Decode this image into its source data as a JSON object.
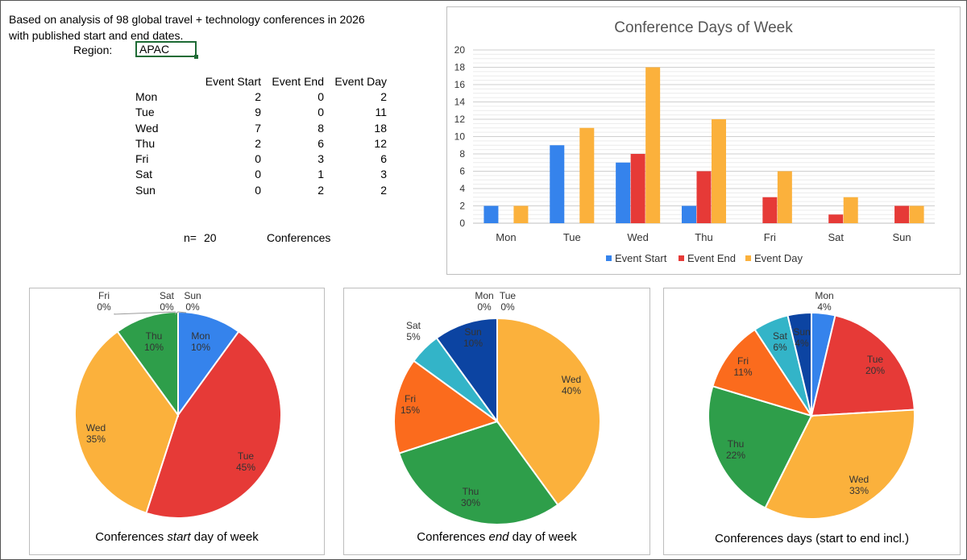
{
  "intro_line1": "Based on analysis of 98 global travel + technology conferences in 2026",
  "intro_line2": "with published start and end dates.",
  "region_label": "Region:",
  "region_value": "APAC",
  "table": {
    "headers": [
      "",
      "Event Start",
      "Event End",
      "Event Day"
    ],
    "rows": [
      [
        "Mon",
        "2",
        "0",
        "2"
      ],
      [
        "Tue",
        "9",
        "0",
        "11"
      ],
      [
        "Wed",
        "7",
        "8",
        "18"
      ],
      [
        "Thu",
        "2",
        "6",
        "12"
      ],
      [
        "Fri",
        "0",
        "3",
        "6"
      ],
      [
        "Sat",
        "0",
        "1",
        "3"
      ],
      [
        "Sun",
        "0",
        "2",
        "2"
      ]
    ]
  },
  "n_label": "n=",
  "n_value": "20",
  "n_unit": "Conferences",
  "colors": {
    "start": "#3583ec",
    "end": "#e63a37",
    "day": "#fbb13c",
    "pie_mon": "#3583ec",
    "pie_tue": "#e63a37",
    "pie_wed": "#fbb13c",
    "pie_thu": "#2e9e4a",
    "pie_fri": "#fb6b1d",
    "pie_sat": "#33b4c8",
    "pie_sun": "#0c44a2"
  },
  "chart_data": [
    {
      "type": "bar",
      "title": "Conference Days of Week",
      "categories": [
        "Mon",
        "Tue",
        "Wed",
        "Thu",
        "Fri",
        "Sat",
        "Sun"
      ],
      "series": [
        {
          "name": "Event Start",
          "values": [
            2,
            9,
            7,
            2,
            0,
            0,
            0
          ]
        },
        {
          "name": "Event End",
          "values": [
            0,
            0,
            8,
            6,
            3,
            1,
            2
          ]
        },
        {
          "name": "Event Day",
          "values": [
            2,
            11,
            18,
            12,
            6,
            3,
            2
          ]
        }
      ],
      "ylim": [
        0,
        20
      ],
      "yticks": [
        "0",
        "2",
        "4",
        "6",
        "8",
        "10",
        "12",
        "14",
        "16",
        "18",
        "20"
      ],
      "legend": "bottom",
      "grid": true
    },
    {
      "type": "pie",
      "title_parts": [
        "Conferences ",
        "start",
        " day of week"
      ],
      "labels": [
        "Mon",
        "Tue",
        "Wed",
        "Thu",
        "Fri",
        "Sat",
        "Sun"
      ],
      "values": [
        2,
        9,
        7,
        2,
        0,
        0,
        0
      ],
      "percents": [
        "10%",
        "45%",
        "35%",
        "10%",
        "0%",
        "0%",
        "0%"
      ]
    },
    {
      "type": "pie",
      "title_parts": [
        "Conferences ",
        "end",
        " day of week"
      ],
      "labels": [
        "Mon",
        "Tue",
        "Wed",
        "Thu",
        "Fri",
        "Sat",
        "Sun"
      ],
      "values": [
        0,
        0,
        8,
        6,
        3,
        1,
        2
      ],
      "percents": [
        "0%",
        "0%",
        "40%",
        "30%",
        "15%",
        "5%",
        "10%"
      ]
    },
    {
      "type": "pie",
      "title_parts": [
        "Conferences days (start to end incl.)",
        "",
        ""
      ],
      "labels": [
        "Mon",
        "Tue",
        "Wed",
        "Thu",
        "Fri",
        "Sat",
        "Sun"
      ],
      "values": [
        2,
        11,
        18,
        12,
        6,
        3,
        2
      ],
      "percents": [
        "4%",
        "20%",
        "33%",
        "22%",
        "11%",
        "6%",
        "4%"
      ]
    }
  ]
}
